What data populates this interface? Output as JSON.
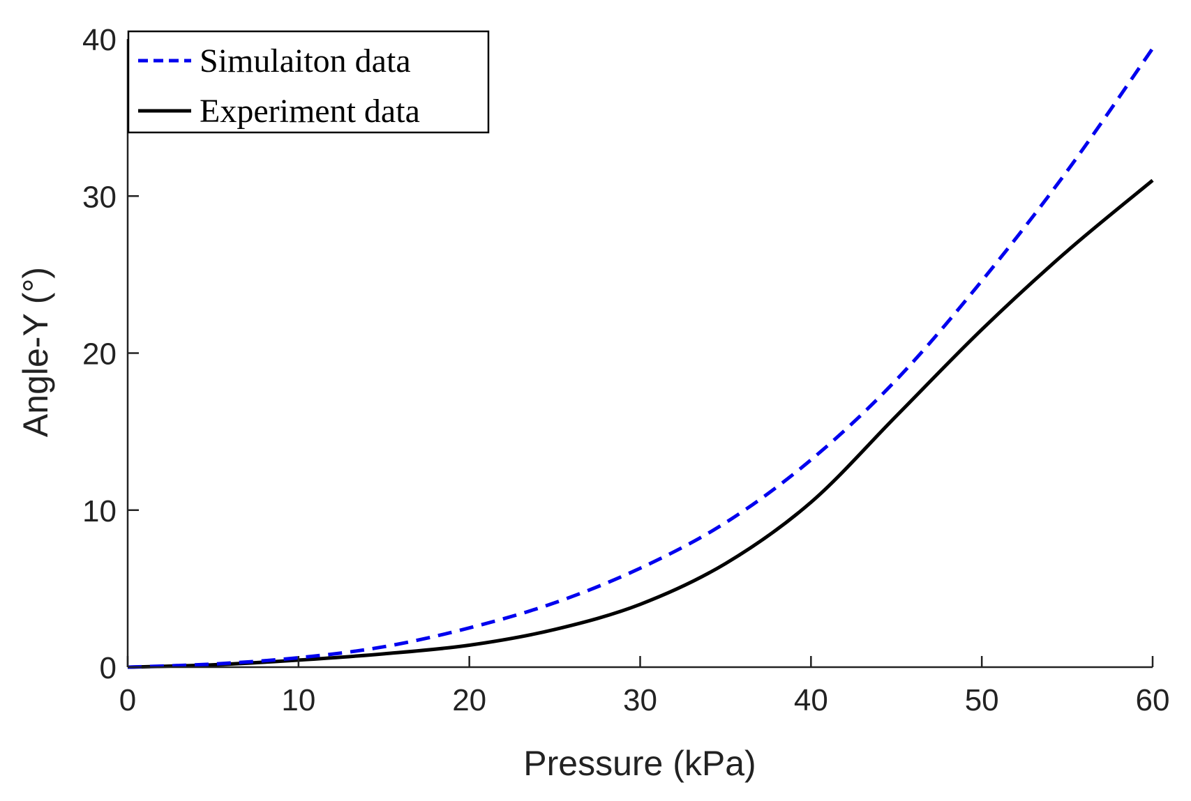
{
  "chart_data": {
    "type": "line",
    "title": "",
    "xlabel": "Pressure (kPa)",
    "ylabel": "Angle-Y (°)",
    "xlim": [
      0,
      60
    ],
    "ylim": [
      0,
      40
    ],
    "xticks": [
      0,
      10,
      20,
      30,
      40,
      50,
      60
    ],
    "yticks": [
      0,
      10,
      20,
      30,
      40
    ],
    "grid": false,
    "legend_position": "top-left",
    "series": [
      {
        "name": "Simulaiton data",
        "color": "#0000ee",
        "style": "dashed",
        "x": [
          0,
          5,
          10,
          15,
          20,
          25,
          30,
          35,
          40,
          45,
          50,
          55,
          60
        ],
        "y": [
          0,
          0.2,
          0.6,
          1.3,
          2.5,
          4.1,
          6.3,
          9.2,
          13.2,
          18.3,
          24.6,
          31.6,
          39.4
        ]
      },
      {
        "name": "Experiment data",
        "color": "#000000",
        "style": "solid",
        "x": [
          0,
          5,
          10,
          15,
          20,
          25,
          30,
          35,
          40,
          45,
          50,
          55,
          60
        ],
        "y": [
          0,
          0.15,
          0.45,
          0.85,
          1.4,
          2.4,
          4.0,
          6.6,
          10.5,
          16.0,
          21.5,
          26.5,
          31.0
        ]
      }
    ]
  }
}
